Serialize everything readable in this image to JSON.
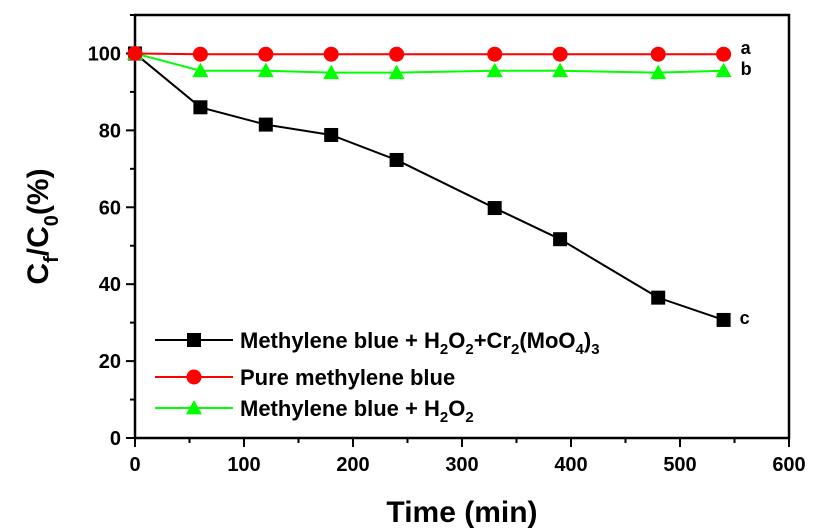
{
  "chart_data": {
    "type": "line",
    "xlabel": "Time (min)",
    "ylabel": {
      "main": "C",
      "sub1": "f",
      "mid": "/C",
      "sub2": "0",
      "end": "(%)"
    },
    "xlim": [
      0,
      600
    ],
    "ylim": [
      0,
      110
    ],
    "xticks": [
      0,
      100,
      200,
      300,
      400,
      500,
      600
    ],
    "yticks": [
      0,
      20,
      40,
      60,
      80,
      100
    ],
    "grid": false,
    "legend_position": "bottom-left",
    "series": [
      {
        "name": "Methylene blue + H2O2+Cr2(MoO4)3",
        "legend_parts": [
          {
            "t": "Methylene blue + H",
            "s": false
          },
          {
            "t": "2",
            "s": true
          },
          {
            "t": "O",
            "s": false
          },
          {
            "t": "2",
            "s": true
          },
          {
            "t": "+Cr",
            "s": false
          },
          {
            "t": "2",
            "s": true
          },
          {
            "t": "(MoO",
            "s": false
          },
          {
            "t": "4",
            "s": true
          },
          {
            "t": ")",
            "s": false
          },
          {
            "t": "3",
            "s": true
          }
        ],
        "color": "#000000",
        "marker": "square",
        "label": "c",
        "x": [
          0,
          60,
          120,
          180,
          240,
          330,
          390,
          480,
          540
        ],
        "y": [
          100,
          86,
          81.5,
          78.8,
          72.3,
          59.8,
          51.7,
          36.5,
          30.7
        ]
      },
      {
        "name": "Pure methylene blue",
        "legend_parts": [
          {
            "t": "Pure methylene blue",
            "s": false
          }
        ],
        "color": "#ff0000",
        "marker": "circle",
        "label": "a",
        "x": [
          0,
          60,
          120,
          180,
          240,
          330,
          390,
          480,
          540
        ],
        "y": [
          100,
          99.8,
          99.8,
          99.8,
          99.8,
          99.8,
          99.8,
          99.8,
          99.8
        ]
      },
      {
        "name": "Methylene blue + H2O2",
        "legend_parts": [
          {
            "t": "Methylene blue + H",
            "s": false
          },
          {
            "t": "2",
            "s": true
          },
          {
            "t": "O",
            "s": false
          },
          {
            "t": "2",
            "s": true
          }
        ],
        "color": "#00ff00",
        "marker": "triangle",
        "label": "b",
        "x": [
          0,
          60,
          120,
          180,
          240,
          330,
          390,
          480,
          540
        ],
        "y": [
          100,
          95.5,
          95.5,
          95,
          95,
          95.5,
          95.5,
          95,
          95.5
        ]
      }
    ]
  }
}
